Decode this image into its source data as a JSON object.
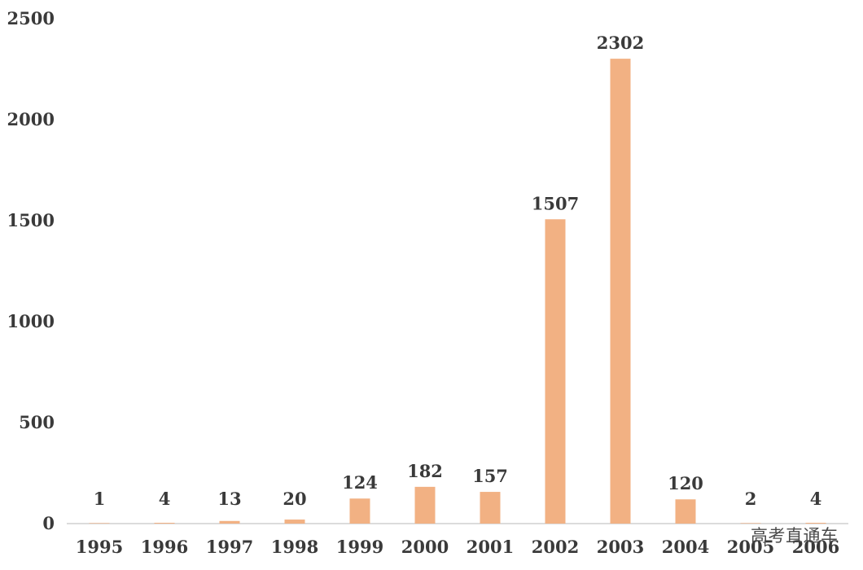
{
  "chart_data": {
    "type": "bar",
    "title": "",
    "xlabel": "",
    "ylabel": "",
    "categories": [
      "1995",
      "1996",
      "1997",
      "1998",
      "1999",
      "2000",
      "2001",
      "2002",
      "2003",
      "2004",
      "2005",
      "2006"
    ],
    "values": [
      1,
      4,
      13,
      20,
      124,
      182,
      157,
      1507,
      2302,
      120,
      2,
      4
    ],
    "value_labels": [
      "1",
      "4",
      "13",
      "20",
      "124",
      "182",
      "157",
      "1507",
      "2302",
      "120",
      "2",
      "4"
    ],
    "ylim": [
      0,
      2500
    ],
    "yticks": [
      "0",
      "500",
      "1000",
      "1500",
      "2000",
      "2500"
    ],
    "grid": false,
    "legend": "none",
    "bar_color": "#F2B183",
    "axis_color": "#D0D0D0"
  },
  "watermark": {
    "text": "高考直通车"
  }
}
